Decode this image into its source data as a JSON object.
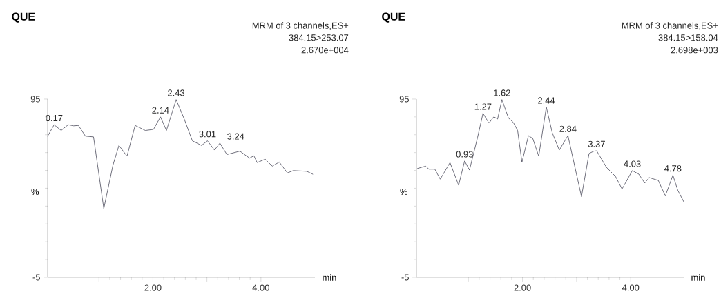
{
  "chart_data": [
    {
      "type": "line",
      "title": "QUE",
      "xlabel": "min",
      "ylabel": "%",
      "color": "#4a4a5a",
      "annotations": [
        "MRM of 3 channels,ES+",
        "384.15>253.07",
        "2.670e+004",
        {
          "text": "0.17",
          "x": 0.17,
          "y": 80.6
        },
        {
          "text": "2.14",
          "x": 2.14,
          "y": 85
        },
        {
          "text": "2.43",
          "x": 2.43,
          "y": 94.7
        },
        {
          "text": "3.01",
          "x": 3.01,
          "y": 71.6
        },
        {
          "text": "3.24",
          "x": 3.24,
          "y": 70.3
        }
      ],
      "x": [
        0.05,
        0.17,
        0.3,
        0.43,
        0.53,
        0.62,
        0.75,
        0.9,
        1.09,
        1.26,
        1.37,
        1.52,
        1.67,
        1.86,
        2.01,
        2.14,
        2.25,
        2.43,
        2.58,
        2.73,
        2.9,
        3.01,
        3.14,
        3.24,
        3.37,
        3.61,
        3.79,
        3.87,
        3.93,
        4.08,
        4.21,
        4.34,
        4.49,
        4.6,
        4.85,
        4.96
      ],
      "values": [
        74.2,
        80.6,
        77.4,
        80.6,
        80,
        80.2,
        74.2,
        73.8,
        33.6,
        58,
        69,
        63,
        80.2,
        77.4,
        78,
        85,
        77.4,
        94.7,
        83.8,
        71.6,
        69,
        71.6,
        66.4,
        70.3,
        63.9,
        65.8,
        61.9,
        63.2,
        59.4,
        61.3,
        57.4,
        59.7,
        53.6,
        54.9,
        54.5,
        52.9
      ],
      "xlim": [
        0.05,
        5.0
      ],
      "ylim": [
        -5,
        95
      ],
      "xticks": [
        {
          "value": 1,
          "label": null
        },
        {
          "value": 2,
          "label": "2.00"
        },
        {
          "value": 3,
          "label": null
        },
        {
          "value": 4,
          "label": "4.00"
        }
      ],
      "yticks": [
        -5,
        95
      ]
    },
    {
      "type": "line",
      "title": "QUE",
      "xlabel": "min",
      "ylabel": "%",
      "color": "#4a4a5a",
      "annotations": [
        "MRM of 3 channels,ES+",
        "384.15>158.04",
        "2.698e+003",
        {
          "text": "0.93",
          "x": 0.93,
          "y": 60.3
        },
        {
          "text": "1.27",
          "x": 1.27,
          "y": 87
        },
        {
          "text": "1.62",
          "x": 1.62,
          "y": 94.7
        },
        {
          "text": "2.44",
          "x": 2.44,
          "y": 90.5
        },
        {
          "text": "2.84",
          "x": 2.84,
          "y": 74.5
        },
        {
          "text": "3.37",
          "x": 3.37,
          "y": 66
        },
        {
          "text": "4.03",
          "x": 4.03,
          "y": 54.9
        },
        {
          "text": "4.78",
          "x": 4.78,
          "y": 52.3
        }
      ],
      "x": [
        0.06,
        0.21,
        0.27,
        0.38,
        0.48,
        0.66,
        0.82,
        0.93,
        1.02,
        1.17,
        1.27,
        1.38,
        1.47,
        1.54,
        1.62,
        1.74,
        1.83,
        1.91,
        1.99,
        2.11,
        2.19,
        2.3,
        2.44,
        2.55,
        2.68,
        2.84,
        3.09,
        3.23,
        3.32,
        3.37,
        3.55,
        3.72,
        3.84,
        4.03,
        4.15,
        4.26,
        4.34,
        4.51,
        4.64,
        4.78,
        4.87,
        4.98
      ],
      "values": [
        56.1,
        57.4,
        55.7,
        55.7,
        50.1,
        59.4,
        46.7,
        60.3,
        55.2,
        73.5,
        87,
        81.5,
        85.1,
        83.8,
        94.7,
        84.4,
        81.9,
        77.4,
        59.6,
        74.5,
        72.9,
        63,
        90.5,
        76.1,
        66.4,
        74.5,
        40.3,
        64.5,
        65.8,
        66,
        56.8,
        51.6,
        44.6,
        54.9,
        52.9,
        47.9,
        51,
        49.4,
        40.7,
        52.3,
        43.9,
        37.5
      ],
      "xlim": [
        0.04,
        4.98
      ],
      "ylim": [
        -5,
        95
      ],
      "xticks": [
        {
          "value": 1,
          "label": null
        },
        {
          "value": 2,
          "label": "2.00"
        },
        {
          "value": 3,
          "label": null
        },
        {
          "value": 4,
          "label": "4.00"
        }
      ],
      "yticks": [
        -5,
        95
      ]
    }
  ]
}
